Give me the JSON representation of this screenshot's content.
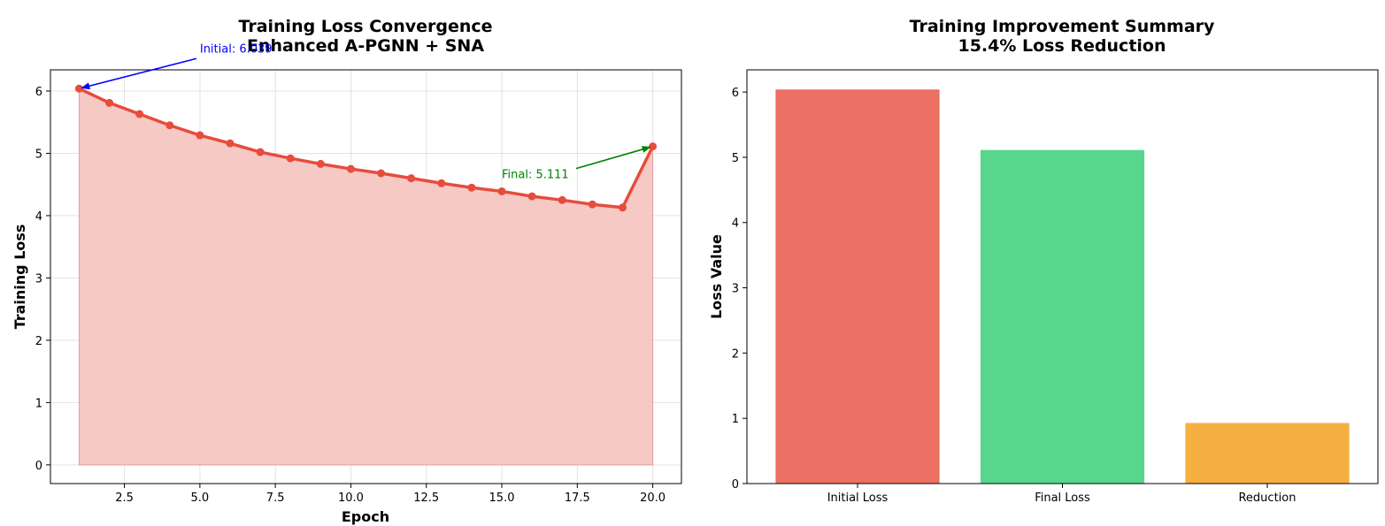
{
  "chart_data": [
    {
      "type": "line",
      "title": "Training Loss Convergence",
      "subtitle": "Enhanced A-PGNN + SNA",
      "xlabel": "Epoch",
      "ylabel": "Training Loss",
      "xlim": [
        0.05,
        20.95
      ],
      "ylim": [
        -0.3,
        6.34
      ],
      "xticks": [
        2.5,
        5.0,
        7.5,
        10.0,
        12.5,
        15.0,
        17.5,
        20.0
      ],
      "xtick_labels": [
        "2.5",
        "5.0",
        "7.5",
        "10.0",
        "12.5",
        "15.0",
        "17.5",
        "20.0"
      ],
      "yticks": [
        0,
        1,
        2,
        3,
        4,
        5,
        6
      ],
      "ytick_labels": [
        "0",
        "1",
        "2",
        "3",
        "4",
        "5",
        "6"
      ],
      "grid": true,
      "fill_under": true,
      "line_color": "#e74c3c",
      "fill_color": "#f5c6c2",
      "series": [
        {
          "x": [
            1,
            2,
            3,
            4,
            5,
            6,
            7,
            8,
            9,
            10,
            11,
            12,
            13,
            14,
            15,
            16,
            17,
            18,
            19,
            20
          ],
          "values": [
            6.039,
            5.81,
            5.63,
            5.45,
            5.29,
            5.16,
            5.02,
            4.92,
            4.83,
            4.75,
            4.68,
            4.6,
            4.52,
            4.45,
            4.39,
            4.31,
            4.25,
            4.18,
            4.13,
            5.111
          ]
        }
      ],
      "annotations": [
        {
          "text": "Initial: 6.039",
          "point": [
            1,
            6.039
          ],
          "text_pos": [
            5.0,
            6.62
          ],
          "color": "#0000ff"
        },
        {
          "text": "Final: 5.111",
          "point": [
            20,
            5.111
          ],
          "text_pos": [
            15.0,
            4.6
          ],
          "color": "#008000"
        }
      ]
    },
    {
      "type": "bar",
      "title": "Training Improvement Summary",
      "subtitle": "15.4% Loss Reduction",
      "xlabel": "",
      "ylabel": "Loss Value",
      "ylim": [
        0,
        6.34
      ],
      "yticks": [
        0,
        1,
        2,
        3,
        4,
        5,
        6
      ],
      "ytick_labels": [
        "0",
        "1",
        "2",
        "3",
        "4",
        "5",
        "6"
      ],
      "grid": false,
      "categories": [
        "Initial Loss",
        "Final Loss",
        "Reduction"
      ],
      "values": [
        6.039,
        5.111,
        0.928
      ],
      "colors": [
        "#ec7063",
        "#58d68d",
        "#f5b041"
      ]
    }
  ]
}
